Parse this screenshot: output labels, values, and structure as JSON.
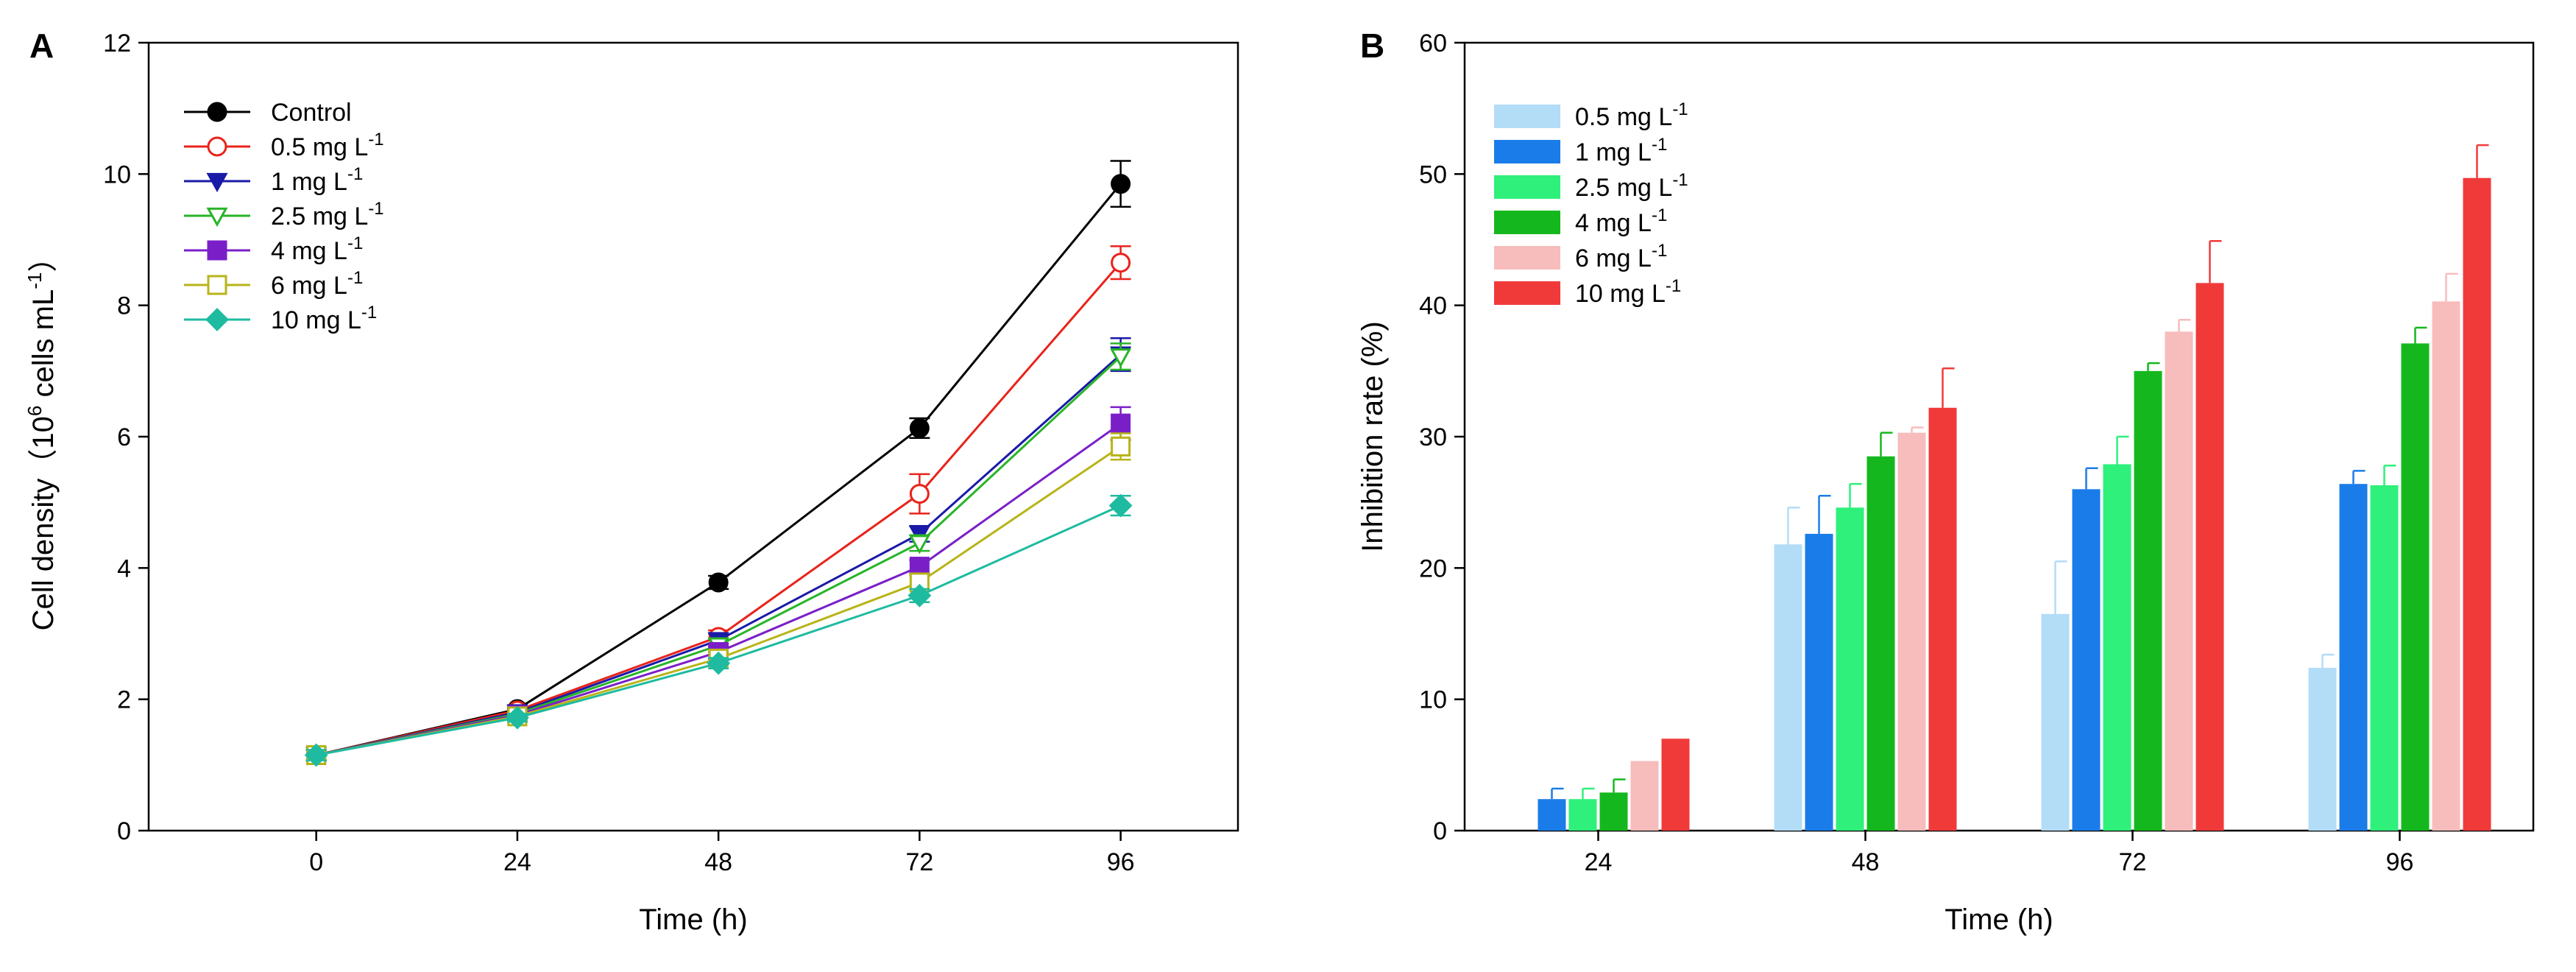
{
  "chart_data": [
    {
      "panel": "A",
      "type": "line",
      "xlabel": "Time (h)",
      "ylabel_main": "Cell density（10",
      "ylabel_sup": "6",
      "ylabel_rest": " cells mL",
      "ylabel_sup2": "-1",
      "ylabel_end": "）",
      "xlim": [
        -20,
        110
      ],
      "ylim": [
        0,
        12
      ],
      "x": [
        0,
        24,
        48,
        72,
        96
      ],
      "xticks": [
        0,
        24,
        48,
        72,
        96
      ],
      "yticks": [
        0,
        2,
        4,
        6,
        8,
        10,
        12
      ],
      "series": [
        {
          "name": "Control",
          "unit": "",
          "color": "#000000",
          "marker": "circle",
          "filled": true,
          "values": [
            1.15,
            1.85,
            3.78,
            6.13,
            9.85
          ],
          "errors": [
            0.08,
            0.06,
            0.1,
            0.15,
            0.35
          ]
        },
        {
          "name": "0.5 mg L",
          "unit": "-1",
          "color": "#e8231b",
          "marker": "circle",
          "filled": false,
          "values": [
            1.15,
            1.83,
            2.95,
            5.13,
            8.65
          ],
          "errors": [
            0.08,
            0.06,
            0.1,
            0.3,
            0.25
          ]
        },
        {
          "name": "1 mg L",
          "unit": "-1",
          "color": "#1a1aa8",
          "marker": "triangle-down",
          "filled": true,
          "values": [
            1.15,
            1.8,
            2.9,
            4.52,
            7.25
          ],
          "errors": [
            0.08,
            0.06,
            0.1,
            0.12,
            0.25
          ]
        },
        {
          "name": "2.5 mg L",
          "unit": "-1",
          "color": "#28b428",
          "marker": "triangle-down",
          "filled": false,
          "values": [
            1.15,
            1.78,
            2.82,
            4.38,
            7.22
          ],
          "errors": [
            0.08,
            0.06,
            0.1,
            0.12,
            0.2
          ]
        },
        {
          "name": "4 mg L",
          "unit": "-1",
          "color": "#7a1fc8",
          "marker": "square",
          "filled": true,
          "values": [
            1.15,
            1.76,
            2.72,
            4.02,
            6.2
          ],
          "errors": [
            0.08,
            0.06,
            0.1,
            0.1,
            0.25
          ]
        },
        {
          "name": "6 mg L",
          "unit": "-1",
          "color": "#b8b418",
          "marker": "square",
          "filled": false,
          "values": [
            1.15,
            1.74,
            2.62,
            3.78,
            5.85
          ],
          "errors": [
            0.08,
            0.06,
            0.1,
            0.1,
            0.2
          ]
        },
        {
          "name": "10 mg L",
          "unit": "-1",
          "color": "#1ebba0",
          "marker": "diamond",
          "filled": true,
          "values": [
            1.15,
            1.72,
            2.55,
            3.58,
            4.95
          ],
          "errors": [
            0.08,
            0.06,
            0.08,
            0.1,
            0.15
          ]
        }
      ]
    },
    {
      "panel": "B",
      "type": "bar",
      "xlabel": "Time (h)",
      "ylabel": "Inhibition rate (%)",
      "categories": [
        "24",
        "48",
        "72",
        "96"
      ],
      "ylim": [
        0,
        60
      ],
      "yticks": [
        0,
        10,
        20,
        30,
        40,
        50,
        60
      ],
      "series": [
        {
          "name": "0.5  mg L",
          "unit": "-1",
          "color": "#b3dcf7",
          "values": [
            0,
            21.8,
            16.5,
            12.4
          ],
          "errors": [
            0,
            2.8,
            4.0,
            1.0
          ]
        },
        {
          "name": "1  mg L",
          "unit": "-1",
          "color": "#1a7ce8",
          "values": [
            2.4,
            22.6,
            26.0,
            26.4
          ],
          "errors": [
            0.8,
            2.9,
            1.6,
            1.0
          ]
        },
        {
          "name": "2.5 mg L",
          "unit": "-1",
          "color": "#2ef07a",
          "values": [
            2.4,
            24.6,
            27.9,
            26.3
          ],
          "errors": [
            0.8,
            1.8,
            2.1,
            1.5
          ]
        },
        {
          "name": "4 mg L",
          "unit": "-1",
          "color": "#14b81e",
          "values": [
            2.9,
            28.5,
            35.0,
            37.1
          ],
          "errors": [
            1.0,
            1.8,
            0.6,
            1.2
          ]
        },
        {
          "name": "6 mg L",
          "unit": "-1",
          "color": "#f7bcbc",
          "values": [
            5.3,
            30.3,
            38.0,
            40.3
          ],
          "errors": [
            0,
            0.4,
            0.9,
            2.1
          ]
        },
        {
          "name": "10 mg L",
          "unit": "-1",
          "color": "#f03a3a",
          "values": [
            7.0,
            32.2,
            41.7,
            49.7
          ],
          "errors": [
            0,
            3.0,
            3.2,
            2.5
          ]
        }
      ]
    }
  ]
}
